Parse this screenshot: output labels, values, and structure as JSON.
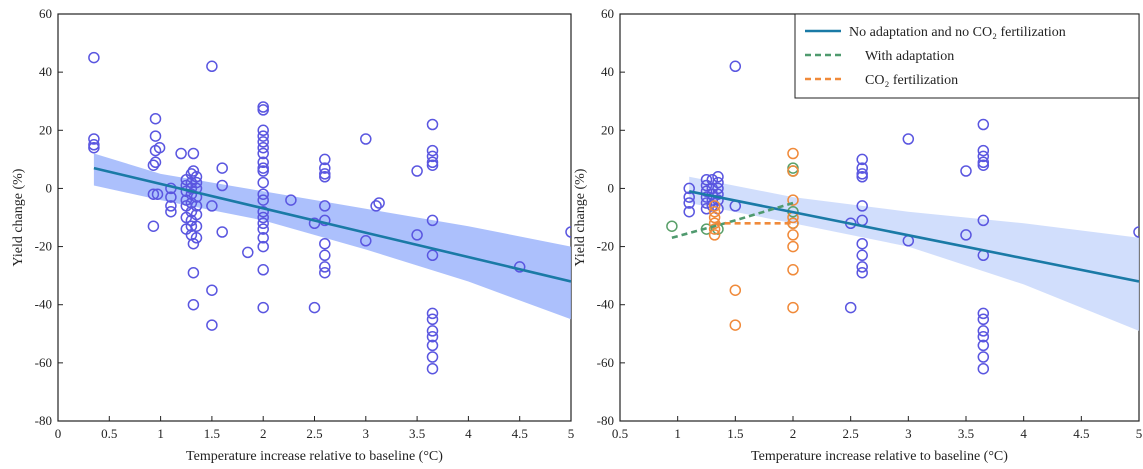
{
  "colors": {
    "scatter": "#5a56e0",
    "adaptation_points": "#5aa06a",
    "co2_points": "#f08a3a",
    "regression": "#1a7aa6",
    "ci_left": "#9db5fb",
    "ci_right": "#c9d8fb",
    "adaptation_line": "#4f9a6e",
    "co2_line": "#f08a3a"
  },
  "chart_data": [
    {
      "type": "scatter",
      "xlabel": "Temperature increase relative to baseline (°C)",
      "ylabel": "Yield change (%)",
      "xlim": [
        0,
        5
      ],
      "ylim": [
        -80,
        60
      ],
      "xticks": [
        {
          "v": 0,
          "label": "0"
        },
        {
          "v": 0.5,
          "label": "0.5"
        },
        {
          "v": 1,
          "label": "1"
        },
        {
          "v": 1.5,
          "label": "1.5"
        },
        {
          "v": 2,
          "label": "2"
        },
        {
          "v": 2.5,
          "label": "2.5"
        },
        {
          "v": 3,
          "label": "3"
        },
        {
          "v": 3.5,
          "label": "3.5"
        },
        {
          "v": 4,
          "label": "4"
        },
        {
          "v": 4.5,
          "label": "4.5"
        },
        {
          "v": 5,
          "label": "5"
        }
      ],
      "yticks": [
        {
          "v": 60,
          "label": "60"
        },
        {
          "v": 40,
          "label": "40"
        },
        {
          "v": 20,
          "label": "20"
        },
        {
          "v": 0,
          "label": "0"
        },
        {
          "v": -20,
          "label": "-20"
        },
        {
          "v": -40,
          "label": "-40"
        },
        {
          "v": -60,
          "label": "-60"
        },
        {
          "v": -80,
          "label": "-80"
        }
      ],
      "series": [
        {
          "kind": "points",
          "color_key": "scatter",
          "points": [
            [
              0.35,
              45
            ],
            [
              0.35,
              17
            ],
            [
              0.35,
              15
            ],
            [
              0.35,
              14
            ],
            [
              0.93,
              8
            ],
            [
              0.93,
              -2
            ],
            [
              0.93,
              -13
            ],
            [
              0.95,
              24
            ],
            [
              0.95,
              18
            ],
            [
              0.95,
              13
            ],
            [
              0.95,
              9
            ],
            [
              0.97,
              -2
            ],
            [
              0.99,
              14
            ],
            [
              1.1,
              0
            ],
            [
              1.1,
              -3
            ],
            [
              1.1,
              -6
            ],
            [
              1.1,
              -8
            ],
            [
              1.2,
              12
            ],
            [
              1.25,
              3
            ],
            [
              1.25,
              1
            ],
            [
              1.25,
              -1
            ],
            [
              1.25,
              -4
            ],
            [
              1.25,
              -6
            ],
            [
              1.25,
              -10
            ],
            [
              1.25,
              -14
            ],
            [
              1.3,
              5
            ],
            [
              1.3,
              2
            ],
            [
              1.3,
              0
            ],
            [
              1.3,
              -2
            ],
            [
              1.3,
              -5
            ],
            [
              1.3,
              -8
            ],
            [
              1.3,
              -11
            ],
            [
              1.3,
              -13
            ],
            [
              1.3,
              -16
            ],
            [
              1.32,
              12
            ],
            [
              1.32,
              6
            ],
            [
              1.32,
              -19
            ],
            [
              1.32,
              -29
            ],
            [
              1.32,
              -40
            ],
            [
              1.35,
              4
            ],
            [
              1.35,
              2
            ],
            [
              1.35,
              0
            ],
            [
              1.35,
              -3
            ],
            [
              1.35,
              -6
            ],
            [
              1.35,
              -9
            ],
            [
              1.35,
              -13
            ],
            [
              1.35,
              -17
            ],
            [
              1.5,
              42
            ],
            [
              1.5,
              -6
            ],
            [
              1.5,
              -35
            ],
            [
              1.5,
              -47
            ],
            [
              1.6,
              7
            ],
            [
              1.6,
              1
            ],
            [
              1.6,
              -15
            ],
            [
              1.85,
              -22
            ],
            [
              2.0,
              28
            ],
            [
              2.0,
              27
            ],
            [
              2.0,
              20
            ],
            [
              2.0,
              18
            ],
            [
              2.0,
              16
            ],
            [
              2.0,
              14
            ],
            [
              2.0,
              12
            ],
            [
              2.0,
              9
            ],
            [
              2.0,
              7
            ],
            [
              2.0,
              6
            ],
            [
              2.0,
              2
            ],
            [
              2.0,
              -2
            ],
            [
              2.0,
              -4
            ],
            [
              2.0,
              -8
            ],
            [
              2.0,
              -10
            ],
            [
              2.0,
              -12
            ],
            [
              2.0,
              -14
            ],
            [
              2.0,
              -17
            ],
            [
              2.0,
              -20
            ],
            [
              2.0,
              -28
            ],
            [
              2.0,
              -41
            ],
            [
              2.27,
              -4
            ],
            [
              2.5,
              -12
            ],
            [
              2.5,
              -41
            ],
            [
              2.6,
              10
            ],
            [
              2.6,
              7
            ],
            [
              2.6,
              5
            ],
            [
              2.6,
              4
            ],
            [
              2.6,
              -6
            ],
            [
              2.6,
              -11
            ],
            [
              2.6,
              -19
            ],
            [
              2.6,
              -23
            ],
            [
              2.6,
              -27
            ],
            [
              2.6,
              -29
            ],
            [
              3.0,
              17
            ],
            [
              3.0,
              -18
            ],
            [
              3.1,
              -6
            ],
            [
              3.13,
              -5
            ],
            [
              3.5,
              6
            ],
            [
              3.5,
              -16
            ],
            [
              3.65,
              22
            ],
            [
              3.65,
              13
            ],
            [
              3.65,
              11
            ],
            [
              3.65,
              9
            ],
            [
              3.65,
              8
            ],
            [
              3.65,
              -11
            ],
            [
              3.65,
              -23
            ],
            [
              3.65,
              -43
            ],
            [
              3.65,
              -45
            ],
            [
              3.65,
              -49
            ],
            [
              3.65,
              -51
            ],
            [
              3.65,
              -54
            ],
            [
              3.65,
              -58
            ],
            [
              3.65,
              -62
            ],
            [
              4.5,
              -27
            ],
            [
              5.0,
              -15
            ]
          ]
        },
        {
          "kind": "regression",
          "color_key": "regression",
          "x": [
            0.35,
            5.0
          ],
          "y": [
            7,
            -32
          ]
        },
        {
          "kind": "band",
          "color_key": "ci_left",
          "x": [
            0.35,
            1.0,
            2.0,
            3.0,
            4.0,
            5.0
          ],
          "upper": [
            12,
            5,
            -1,
            -7,
            -13,
            -20
          ],
          "lower": [
            1,
            -4,
            -11,
            -21,
            -32,
            -45
          ]
        }
      ]
    },
    {
      "type": "scatter",
      "xlabel": "Temperature increase relative to baseline (°C)",
      "ylabel": "Yield change (%)",
      "xlim": [
        0.5,
        5
      ],
      "ylim": [
        -80,
        60
      ],
      "xticks": [
        {
          "v": 0.5,
          "label": "0.5"
        },
        {
          "v": 1,
          "label": "1"
        },
        {
          "v": 1.5,
          "label": "1.5"
        },
        {
          "v": 2,
          "label": "2"
        },
        {
          "v": 2.5,
          "label": "2.5"
        },
        {
          "v": 3,
          "label": "3"
        },
        {
          "v": 3.5,
          "label": "3.5"
        },
        {
          "v": 4,
          "label": "4"
        },
        {
          "v": 4.5,
          "label": "4.5"
        },
        {
          "v": 5,
          "label": "5"
        }
      ],
      "yticks": [
        {
          "v": 60,
          "label": "60"
        },
        {
          "v": 40,
          "label": "40"
        },
        {
          "v": 20,
          "label": "20"
        },
        {
          "v": 0,
          "label": "0"
        },
        {
          "v": -20,
          "label": "-20"
        },
        {
          "v": -40,
          "label": "-40"
        },
        {
          "v": -60,
          "label": "-60"
        },
        {
          "v": -80,
          "label": "-80"
        }
      ],
      "legend": {
        "placement": "top-right",
        "entries": [
          {
            "label": "No adaptation and no CO₂ fertilization",
            "color_key": "regression",
            "style": "solid"
          },
          {
            "label": "With adaptation",
            "color_key": "adaptation_line",
            "style": "dashed"
          },
          {
            "label": "CO₂ fertilization",
            "color_key": "co2_line",
            "style": "dashed"
          }
        ]
      },
      "series": [
        {
          "kind": "points",
          "color_key": "scatter",
          "points": [
            [
              1.1,
              0
            ],
            [
              1.1,
              -3
            ],
            [
              1.1,
              -5
            ],
            [
              1.1,
              -8
            ],
            [
              1.25,
              3
            ],
            [
              1.25,
              1
            ],
            [
              1.25,
              -1
            ],
            [
              1.25,
              -3
            ],
            [
              1.25,
              -5
            ],
            [
              1.25,
              -7
            ],
            [
              1.3,
              3
            ],
            [
              1.3,
              0
            ],
            [
              1.3,
              -2
            ],
            [
              1.3,
              -4
            ],
            [
              1.3,
              -6
            ],
            [
              1.35,
              4
            ],
            [
              1.35,
              2
            ],
            [
              1.35,
              0
            ],
            [
              1.35,
              -2
            ],
            [
              1.35,
              -4
            ],
            [
              1.35,
              -7
            ],
            [
              1.5,
              42
            ],
            [
              1.5,
              -6
            ],
            [
              2.5,
              -12
            ],
            [
              2.5,
              -41
            ],
            [
              2.6,
              10
            ],
            [
              2.6,
              7
            ],
            [
              2.6,
              5
            ],
            [
              2.6,
              4
            ],
            [
              2.6,
              -6
            ],
            [
              2.6,
              -11
            ],
            [
              2.6,
              -19
            ],
            [
              2.6,
              -23
            ],
            [
              2.6,
              -27
            ],
            [
              2.6,
              -29
            ],
            [
              3.0,
              17
            ],
            [
              3.0,
              -18
            ],
            [
              3.5,
              6
            ],
            [
              3.5,
              -16
            ],
            [
              3.65,
              22
            ],
            [
              3.65,
              13
            ],
            [
              3.65,
              11
            ],
            [
              3.65,
              9
            ],
            [
              3.65,
              8
            ],
            [
              3.65,
              -11
            ],
            [
              3.65,
              -23
            ],
            [
              3.65,
              -43
            ],
            [
              3.65,
              -45
            ],
            [
              3.65,
              -49
            ],
            [
              3.65,
              -51
            ],
            [
              3.65,
              -54
            ],
            [
              3.65,
              -58
            ],
            [
              3.65,
              -62
            ],
            [
              5.0,
              -15
            ]
          ]
        },
        {
          "kind": "points",
          "color_key": "adaptation_points",
          "points": [
            [
              0.95,
              -13
            ],
            [
              1.25,
              -14
            ],
            [
              1.35,
              -14
            ],
            [
              2.0,
              7
            ],
            [
              2.0,
              6
            ],
            [
              2.0,
              -8
            ],
            [
              2.0,
              -12
            ]
          ]
        },
        {
          "kind": "points",
          "color_key": "co2_points",
          "points": [
            [
              1.32,
              -6
            ],
            [
              1.32,
              -8
            ],
            [
              1.32,
              -10
            ],
            [
              1.32,
              -12
            ],
            [
              1.32,
              -14
            ],
            [
              1.32,
              -16
            ],
            [
              1.5,
              -35
            ],
            [
              1.5,
              -47
            ],
            [
              2.0,
              12
            ],
            [
              2.0,
              6
            ],
            [
              2.0,
              -4
            ],
            [
              2.0,
              -10
            ],
            [
              2.0,
              -12
            ],
            [
              2.0,
              -16
            ],
            [
              2.0,
              -20
            ],
            [
              2.0,
              -28
            ],
            [
              2.0,
              -41
            ]
          ]
        },
        {
          "kind": "band",
          "color_key": "ci_right",
          "x": [
            1.1,
            2.0,
            3.0,
            4.0,
            5.0
          ],
          "upper": [
            4,
            -3,
            -8,
            -12,
            -17
          ],
          "lower": [
            -5,
            -12,
            -20,
            -33,
            -49
          ]
        },
        {
          "kind": "regression",
          "color_key": "regression",
          "x": [
            1.1,
            5.0
          ],
          "y": [
            -1,
            -32
          ]
        },
        {
          "kind": "dashed",
          "color_key": "adaptation_line",
          "x": [
            0.95,
            1.5,
            2.0
          ],
          "y": [
            -17,
            -11,
            -5
          ]
        },
        {
          "kind": "dashed",
          "color_key": "co2_line",
          "x": [
            1.32,
            1.5,
            2.0
          ],
          "y": [
            -12,
            -12,
            -12
          ]
        }
      ]
    }
  ]
}
